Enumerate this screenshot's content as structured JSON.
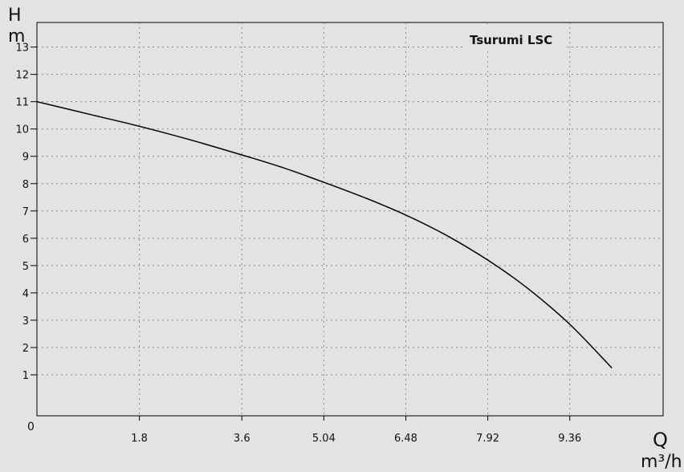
{
  "chart_data": {
    "type": "line",
    "title": "Tsurumi LSC",
    "ylabel": "H",
    "yunit": "m",
    "xlabel": "Q",
    "xunit": "m³/h",
    "origin_label": "0",
    "xlim": [
      0,
      11.0
    ],
    "ylim": [
      -0.5,
      13.9
    ],
    "x_ticks": [
      1.8,
      3.6,
      5.04,
      6.48,
      7.92,
      9.36
    ],
    "x_tick_labels": [
      "1.8",
      "3.6",
      "5.04",
      "6.48",
      "7.92",
      "9.36"
    ],
    "y_ticks": [
      1,
      2,
      3,
      4,
      5,
      6,
      7,
      8,
      9,
      10,
      11,
      12,
      13
    ],
    "y_tick_labels": [
      "1",
      "2",
      "3",
      "4",
      "5",
      "6",
      "7",
      "8",
      "9",
      "10",
      "11",
      "12",
      "13"
    ],
    "grid": true,
    "series": [
      {
        "name": "Tsurumi LSC",
        "color": "#000000",
        "x": [
          0,
          1.0,
          1.8,
          2.7,
          3.6,
          4.3,
          5.04,
          5.8,
          6.48,
          7.2,
          7.92,
          8.6,
          9.36,
          10.1
        ],
        "y": [
          11.0,
          10.5,
          10.1,
          9.6,
          9.05,
          8.6,
          8.05,
          7.45,
          6.85,
          6.1,
          5.2,
          4.2,
          2.85,
          1.25
        ]
      }
    ]
  }
}
